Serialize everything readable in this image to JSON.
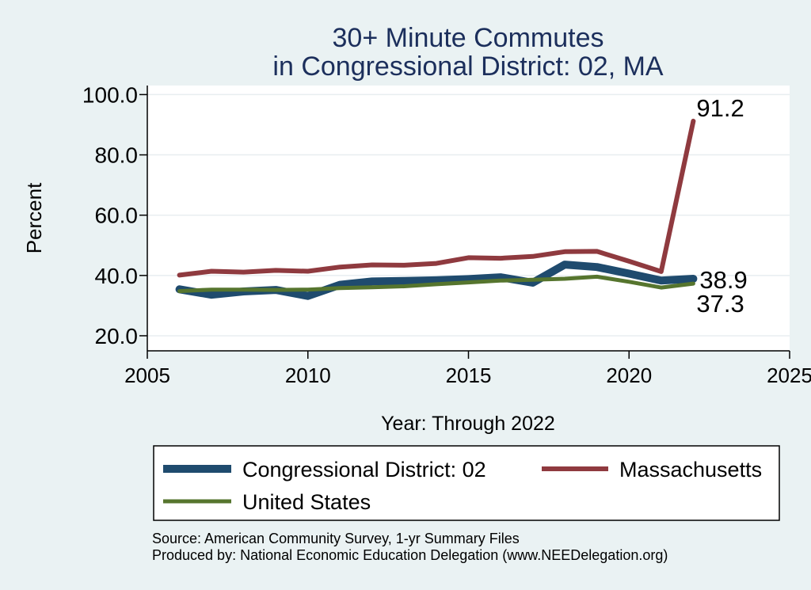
{
  "chart_data": {
    "type": "line",
    "title_lines": [
      "30+ Minute Commutes",
      "in Congressional District:  02, MA"
    ],
    "xlabel": "Year: Through 2022",
    "ylabel": "Percent",
    "xlim": [
      2005,
      2025
    ],
    "ylim": [
      15,
      103
    ],
    "x_ticks": [
      2005,
      2010,
      2015,
      2020,
      2025
    ],
    "x_tick_labels": [
      "2005",
      "2010",
      "2015",
      "2020",
      "2025"
    ],
    "y_ticks": [
      20,
      40,
      60,
      80,
      100
    ],
    "y_tick_labels": [
      "20.0",
      "40.0",
      "60.0",
      "80.0",
      "100.0"
    ],
    "grid": true,
    "legend_position": "bottom",
    "series": [
      {
        "key": "district",
        "name": "Congressional District:  02",
        "color": "#1f4b6e",
        "x": [
          2006,
          2007,
          2008,
          2009,
          2010,
          2011,
          2012,
          2013,
          2014,
          2015,
          2016,
          2017,
          2018,
          2019,
          2020,
          2021,
          2022
        ],
        "values": [
          35.4,
          33.6,
          34.7,
          35.2,
          33.2,
          36.9,
          38.0,
          38.2,
          38.4,
          38.8,
          39.4,
          37.6,
          43.6,
          42.8,
          40.6,
          38.3,
          38.9
        ],
        "end_label": "38.9"
      },
      {
        "key": "massachusetts",
        "name": "Massachusetts",
        "color": "#8f3a3f",
        "x": [
          2006,
          2007,
          2008,
          2009,
          2010,
          2011,
          2012,
          2013,
          2014,
          2015,
          2016,
          2017,
          2018,
          2019,
          2020,
          2021,
          2022
        ],
        "values": [
          40.1,
          41.4,
          41.1,
          41.7,
          41.4,
          42.8,
          43.5,
          43.4,
          44.0,
          45.9,
          45.7,
          46.3,
          47.9,
          48.0,
          44.7,
          41.3,
          91.2
        ],
        "end_label": "91.2"
      },
      {
        "key": "us",
        "name": "United States",
        "color": "#56752e",
        "x": [
          2006,
          2007,
          2008,
          2009,
          2010,
          2011,
          2012,
          2013,
          2014,
          2015,
          2016,
          2017,
          2018,
          2019,
          2020,
          2021,
          2022
        ],
        "values": [
          34.8,
          35.3,
          35.3,
          35.2,
          35.3,
          35.8,
          36.1,
          36.4,
          37.1,
          37.7,
          38.3,
          38.6,
          38.9,
          39.6,
          37.9,
          36.0,
          37.3
        ],
        "end_label": "37.3"
      }
    ]
  },
  "footer": {
    "source": "Source: American Community Survey, 1-yr Summary Files",
    "produced_by": "Produced by: National Economic Education Delegation (www.NEEDelegation.org)"
  }
}
